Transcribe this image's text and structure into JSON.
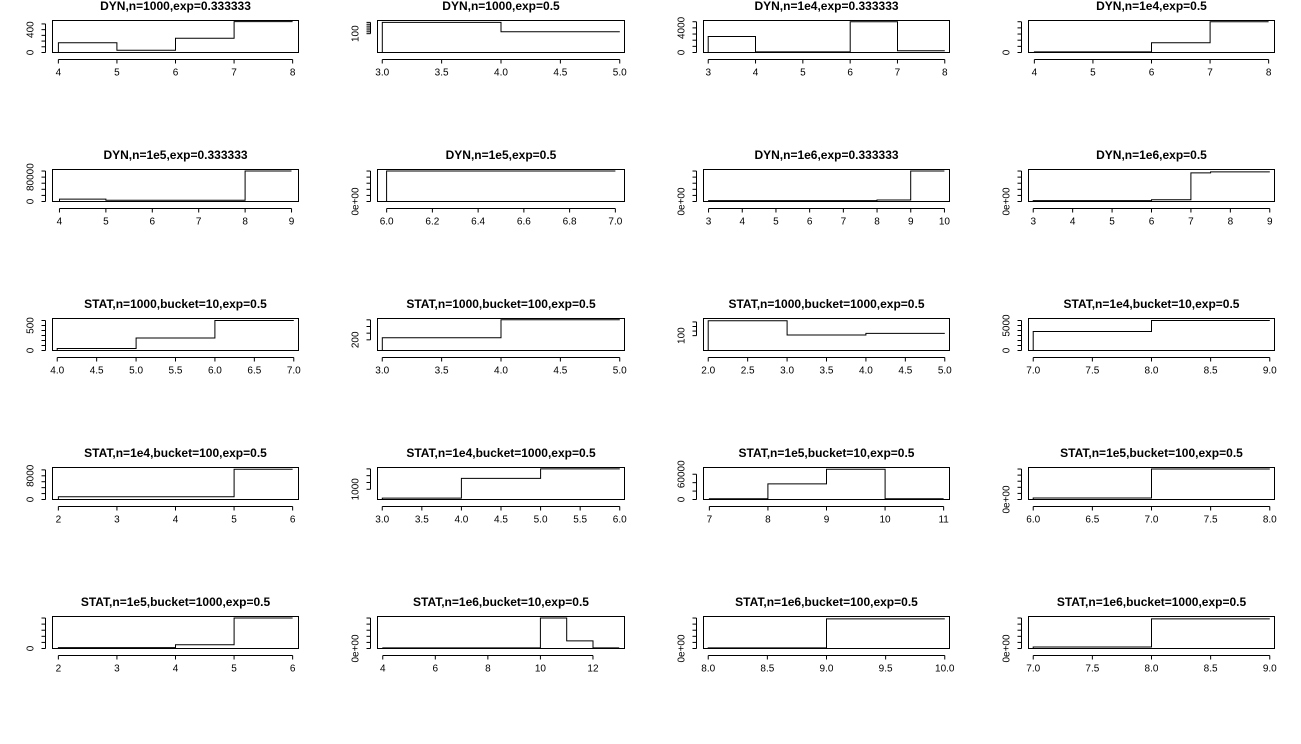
{
  "chart_data": [
    {
      "type": "line",
      "step": true,
      "title": "DYN,n=1000,exp=0.333333",
      "xlim": [
        3.9,
        8.1
      ],
      "ylim": [
        0,
        560
      ],
      "xticks": [
        4,
        5,
        6,
        7,
        8
      ],
      "xtick_labels": [
        "4",
        "5",
        "6",
        "7",
        "8"
      ],
      "yticks": [
        0,
        400
      ],
      "ytick_labels": [
        "0",
        "400"
      ],
      "yminor": [
        100,
        200,
        300,
        500
      ],
      "x": [
        4,
        5,
        6,
        7,
        8
      ],
      "y": [
        170,
        40,
        250,
        540,
        540
      ]
    },
    {
      "type": "line",
      "step": true,
      "title": "DYN,n=1000,exp=0.5",
      "xlim": [
        2.96,
        5.04
      ],
      "ylim": [
        0,
        170
      ],
      "xticks": [
        3,
        3.5,
        4,
        4.5,
        5
      ],
      "xtick_labels": [
        "3.0",
        "3.5",
        "4.0",
        "4.5",
        "5.0"
      ],
      "yticks": [
        100
      ],
      "ytick_labels": [
        "100"
      ],
      "yminor": [
        110,
        120,
        130,
        140,
        150,
        160
      ],
      "x": [
        3,
        4,
        5
      ],
      "y": [
        160,
        110,
        110
      ]
    },
    {
      "type": "line",
      "step": true,
      "title": "DYN,n=1e4,exp=0.333333",
      "xlim": [
        2.9,
        8.1
      ],
      "ylim": [
        0,
        5200
      ],
      "xticks": [
        3,
        4,
        5,
        6,
        7,
        8
      ],
      "xtick_labels": [
        "3",
        "4",
        "5",
        "6",
        "7",
        "8"
      ],
      "yticks": [
        0,
        4000
      ],
      "ytick_labels": [
        "0",
        "4000"
      ],
      "yminor": [
        1000,
        2000,
        3000,
        5000
      ],
      "x": [
        3,
        4,
        6,
        7,
        8
      ],
      "y": [
        2600,
        100,
        5000,
        300,
        300
      ]
    },
    {
      "type": "line",
      "step": true,
      "title": "DYN,n=1e4,exp=0.5",
      "xlim": [
        3.9,
        8.1
      ],
      "ylim": [
        0,
        5200
      ],
      "xticks": [
        4,
        5,
        6,
        7,
        8
      ],
      "xtick_labels": [
        "4",
        "5",
        "6",
        "7",
        "8"
      ],
      "yticks": [
        0
      ],
      "ytick_labels": [
        "0"
      ],
      "yminor": [
        1000,
        2000,
        3000,
        4000,
        5000
      ],
      "x": [
        4,
        6,
        7,
        8
      ],
      "y": [
        100,
        1600,
        5000,
        5000
      ]
    },
    {
      "type": "line",
      "step": true,
      "title": "DYN,n=1e5,exp=0.333333",
      "xlim": [
        3.85,
        9.15
      ],
      "ylim": [
        0,
        105000
      ],
      "xticks": [
        4,
        5,
        6,
        7,
        8,
        9
      ],
      "xtick_labels": [
        "4",
        "5",
        "6",
        "7",
        "8",
        "9"
      ],
      "yticks": [
        0,
        80000
      ],
      "ytick_labels": [
        "0",
        "80000"
      ],
      "yminor": [
        20000,
        40000,
        60000,
        100000
      ],
      "x": [
        4,
        5,
        8,
        9
      ],
      "y": [
        8000,
        4000,
        100000,
        100000
      ]
    },
    {
      "type": "line",
      "step": true,
      "title": "DYN,n=1e5,exp=0.5",
      "xlim": [
        5.96,
        7.04
      ],
      "ylim": [
        0,
        1.05
      ],
      "xticks": [
        6,
        6.2,
        6.4,
        6.6,
        6.8,
        7
      ],
      "xtick_labels": [
        "6.0",
        "6.2",
        "6.4",
        "6.6",
        "6.8",
        "7.0"
      ],
      "yticks": [
        0
      ],
      "ytick_labels": [
        "0e+00"
      ],
      "yminor": [
        0.2,
        0.4,
        0.6,
        0.8,
        1.0
      ],
      "x": [
        6,
        7
      ],
      "y": [
        1.0,
        1.0
      ]
    },
    {
      "type": "line",
      "step": true,
      "title": "DYN,n=1e6,exp=0.333333",
      "xlim": [
        2.85,
        10.15
      ],
      "ylim": [
        0,
        1.05
      ],
      "xticks": [
        3,
        4,
        5,
        6,
        7,
        8,
        9,
        10
      ],
      "xtick_labels": [
        "3",
        "4",
        "5",
        "6",
        "7",
        "8",
        "9",
        "10"
      ],
      "yticks": [
        0
      ],
      "ytick_labels": [
        "0e+00"
      ],
      "yminor": [
        0.2,
        0.4,
        0.6,
        0.8,
        1.0
      ],
      "x": [
        3,
        8,
        9,
        10
      ],
      "y": [
        0.03,
        0.05,
        1.0,
        1.0
      ]
    },
    {
      "type": "line",
      "step": true,
      "title": "DYN,n=1e6,exp=0.5",
      "xlim": [
        2.88,
        9.12
      ],
      "ylim": [
        0,
        1.05
      ],
      "xticks": [
        3,
        4,
        5,
        6,
        7,
        8,
        9
      ],
      "xtick_labels": [
        "3",
        "4",
        "5",
        "6",
        "7",
        "8",
        "9"
      ],
      "yticks": [
        0
      ],
      "ytick_labels": [
        "0e+00"
      ],
      "yminor": [
        0.2,
        0.4,
        0.6,
        0.8,
        1.0
      ],
      "x": [
        3,
        6,
        7,
        7.5,
        9
      ],
      "y": [
        0.03,
        0.06,
        0.94,
        0.97,
        0.97
      ]
    },
    {
      "type": "line",
      "step": true,
      "title": "STAT,n=1000,bucket=10,exp=0.5",
      "xlim": [
        3.94,
        7.06
      ],
      "ylim": [
        0,
        640
      ],
      "xticks": [
        4,
        4.5,
        5,
        5.5,
        6,
        6.5,
        7
      ],
      "xtick_labels": [
        "4.0",
        "4.5",
        "5.0",
        "5.5",
        "6.0",
        "6.5",
        "7.0"
      ],
      "yticks": [
        0,
        500
      ],
      "ytick_labels": [
        "0",
        "500"
      ],
      "yminor": [
        100,
        200,
        300,
        400,
        600
      ],
      "x": [
        4,
        5,
        6,
        7
      ],
      "y": [
        40,
        250,
        600,
        600
      ]
    },
    {
      "type": "line",
      "step": true,
      "title": "STAT,n=1000,bucket=100,exp=0.5",
      "xlim": [
        2.96,
        5.04
      ],
      "ylim": [
        120,
        360
      ],
      "xticks": [
        3,
        3.5,
        4,
        4.5,
        5
      ],
      "xtick_labels": [
        "3.0",
        "3.5",
        "4.0",
        "4.5",
        "5.0"
      ],
      "yticks": [
        200
      ],
      "ytick_labels": [
        "200"
      ],
      "yminor": [
        250,
        300,
        350
      ],
      "x": [
        3,
        4,
        5
      ],
      "y": [
        215,
        350,
        350
      ]
    },
    {
      "type": "line",
      "step": true,
      "title": "STAT,n=1000,bucket=1000,exp=0.5",
      "xlim": [
        1.94,
        5.06
      ],
      "ylim": [
        35,
        175
      ],
      "xticks": [
        2,
        2.5,
        3,
        3.5,
        4,
        4.5,
        5
      ],
      "xtick_labels": [
        "2.0",
        "2.5",
        "3.0",
        "3.5",
        "4.0",
        "4.5",
        "5.0"
      ],
      "yticks": [
        100
      ],
      "ytick_labels": [
        "100"
      ],
      "yminor": [
        120,
        140,
        160
      ],
      "x": [
        2,
        3,
        4,
        5
      ],
      "y": [
        165,
        103,
        110,
        110
      ]
    },
    {
      "type": "line",
      "step": true,
      "title": "STAT,n=1e4,bucket=10,exp=0.5",
      "xlim": [
        6.96,
        9.04
      ],
      "ylim": [
        0,
        6400
      ],
      "xticks": [
        7,
        7.5,
        8,
        8.5,
        9
      ],
      "xtick_labels": [
        "7.0",
        "7.5",
        "8.0",
        "8.5",
        "9.0"
      ],
      "yticks": [
        0,
        5000
      ],
      "ytick_labels": [
        "0",
        "5000"
      ],
      "yminor": [
        1000,
        2000,
        3000,
        4000,
        6000
      ],
      "x": [
        7,
        8,
        9
      ],
      "y": [
        3800,
        6000,
        6000
      ]
    },
    {
      "type": "line",
      "step": true,
      "title": "STAT,n=1e4,bucket=100,exp=0.5",
      "xlim": [
        1.9,
        6.1
      ],
      "ylim": [
        0,
        10800
      ],
      "xticks": [
        2,
        3,
        4,
        5,
        6
      ],
      "xtick_labels": [
        "2",
        "3",
        "4",
        "5",
        "6"
      ],
      "yticks": [
        0,
        8000
      ],
      "ytick_labels": [
        "0",
        "8000"
      ],
      "yminor": [
        2000,
        4000,
        6000,
        10000
      ],
      "x": [
        2,
        5,
        6
      ],
      "y": [
        900,
        10200,
        10200
      ]
    },
    {
      "type": "line",
      "step": true,
      "title": "STAT,n=1e4,bucket=1000,exp=0.5",
      "xlim": [
        2.94,
        6.06
      ],
      "ylim": [
        850,
        1320
      ],
      "xticks": [
        3,
        3.5,
        4,
        4.5,
        5,
        5.5,
        6
      ],
      "xtick_labels": [
        "3.0",
        "3.5",
        "4.0",
        "4.5",
        "5.0",
        "5.5",
        "6.0"
      ],
      "yticks": [
        1000
      ],
      "ytick_labels": [
        "1000"
      ],
      "yminor": [
        1100,
        1200,
        1300
      ],
      "x": [
        3,
        4,
        5,
        6
      ],
      "y": [
        870,
        1160,
        1300,
        1300
      ]
    },
    {
      "type": "line",
      "step": true,
      "title": "STAT,n=1e5,bucket=10,exp=0.5",
      "xlim": [
        6.9,
        11.1
      ],
      "ylim": [
        0,
        76000
      ],
      "xticks": [
        7,
        8,
        9,
        10,
        11
      ],
      "xtick_labels": [
        "7",
        "8",
        "9",
        "10",
        "11"
      ],
      "yticks": [
        0,
        60000
      ],
      "ytick_labels": [
        "0",
        "60000"
      ],
      "yminor": [
        20000,
        40000
      ],
      "x": [
        7,
        8,
        9,
        10,
        11
      ],
      "y": [
        2000,
        37000,
        72000,
        2000,
        2000
      ]
    },
    {
      "type": "line",
      "step": true,
      "title": "STAT,n=1e5,bucket=100,exp=0.5",
      "xlim": [
        5.96,
        8.04
      ],
      "ylim": [
        0,
        1.05
      ],
      "xticks": [
        6,
        6.5,
        7,
        7.5,
        8
      ],
      "xtick_labels": [
        "6.0",
        "6.5",
        "7.0",
        "7.5",
        "8.0"
      ],
      "yticks": [
        0
      ],
      "ytick_labels": [
        "0e+00"
      ],
      "yminor": [
        0.2,
        0.4,
        0.6,
        0.8,
        1.0
      ],
      "x": [
        6,
        7,
        8
      ],
      "y": [
        0.05,
        1.0,
        1.0
      ]
    },
    {
      "type": "line",
      "step": true,
      "title": "STAT,n=1e5,bucket=1000,exp=0.5",
      "xlim": [
        1.9,
        6.1
      ],
      "ylim": [
        0,
        1050
      ],
      "xticks": [
        2,
        3,
        4,
        5,
        6
      ],
      "xtick_labels": [
        "2",
        "3",
        "4",
        "5",
        "6"
      ],
      "yticks": [
        0
      ],
      "ytick_labels": [
        "0"
      ],
      "yminor": [
        200,
        400,
        600,
        800,
        1000
      ],
      "x": [
        2,
        4,
        5,
        6
      ],
      "y": [
        30,
        120,
        1000,
        1000
      ]
    },
    {
      "type": "line",
      "step": true,
      "title": "STAT,n=1e6,bucket=10,exp=0.5",
      "xlim": [
        3.8,
        13.2
      ],
      "ylim": [
        0,
        1.05
      ],
      "xticks": [
        4,
        6,
        8,
        10,
        12
      ],
      "xtick_labels": [
        "4",
        "6",
        "8",
        "10",
        "12"
      ],
      "yticks": [
        0
      ],
      "ytick_labels": [
        "0e+00"
      ],
      "yminor": [
        0.2,
        0.4,
        0.6,
        0.8,
        1.0
      ],
      "x": [
        4,
        10,
        11,
        12,
        13
      ],
      "y": [
        0.02,
        1.0,
        0.25,
        0.02,
        0.02
      ]
    },
    {
      "type": "line",
      "step": true,
      "title": "STAT,n=1e6,bucket=100,exp=0.5",
      "xlim": [
        7.96,
        10.04
      ],
      "ylim": [
        0,
        1.05
      ],
      "xticks": [
        8,
        8.5,
        9,
        9.5,
        10
      ],
      "xtick_labels": [
        "8.0",
        "8.5",
        "9.0",
        "9.5",
        "10.0"
      ],
      "yticks": [
        0
      ],
      "ytick_labels": [
        "0e+00"
      ],
      "yminor": [
        0.2,
        0.4,
        0.6,
        0.8,
        1.0
      ],
      "x": [
        8,
        9,
        10
      ],
      "y": [
        0.02,
        0.97,
        0.97
      ]
    },
    {
      "type": "line",
      "step": true,
      "title": "STAT,n=1e6,bucket=1000,exp=0.5",
      "xlim": [
        6.96,
        9.04
      ],
      "ylim": [
        0,
        1.05
      ],
      "xticks": [
        7,
        7.5,
        8,
        8.5,
        9
      ],
      "xtick_labels": [
        "7.0",
        "7.5",
        "8.0",
        "8.5",
        "9.0"
      ],
      "yticks": [
        0
      ],
      "ytick_labels": [
        "0e+00"
      ],
      "yminor": [
        0.2,
        0.4,
        0.6,
        0.8,
        1.0
      ],
      "x": [
        7,
        8,
        9
      ],
      "y": [
        0.05,
        0.97,
        0.97
      ]
    }
  ]
}
